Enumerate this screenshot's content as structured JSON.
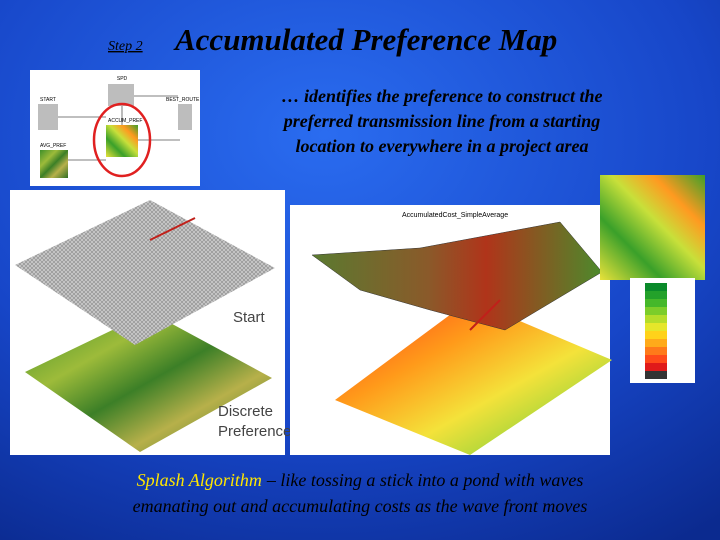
{
  "header": {
    "step": "Step 2",
    "title": "Accumulated Preference Map"
  },
  "description": [
    "… identifies the preference to construct the",
    "preferred transmission line from a starting",
    "location to everywhere in a project area"
  ],
  "flowchart": {
    "labels": [
      "SPD",
      "START",
      "BEST_ROUTE",
      "ACCUM_PREF",
      "AVG_PREF"
    ]
  },
  "figure": {
    "start": "Start",
    "preference": [
      "Discrete",
      "Preference"
    ],
    "plot_title": "AccumulatedCost_SimpleAverage"
  },
  "caption": {
    "highlight": "Splash Algorithm",
    "lines": [
      "– like tossing a stick into a pond with waves",
      "emanating out and accumulating costs as the wave front moves"
    ]
  }
}
